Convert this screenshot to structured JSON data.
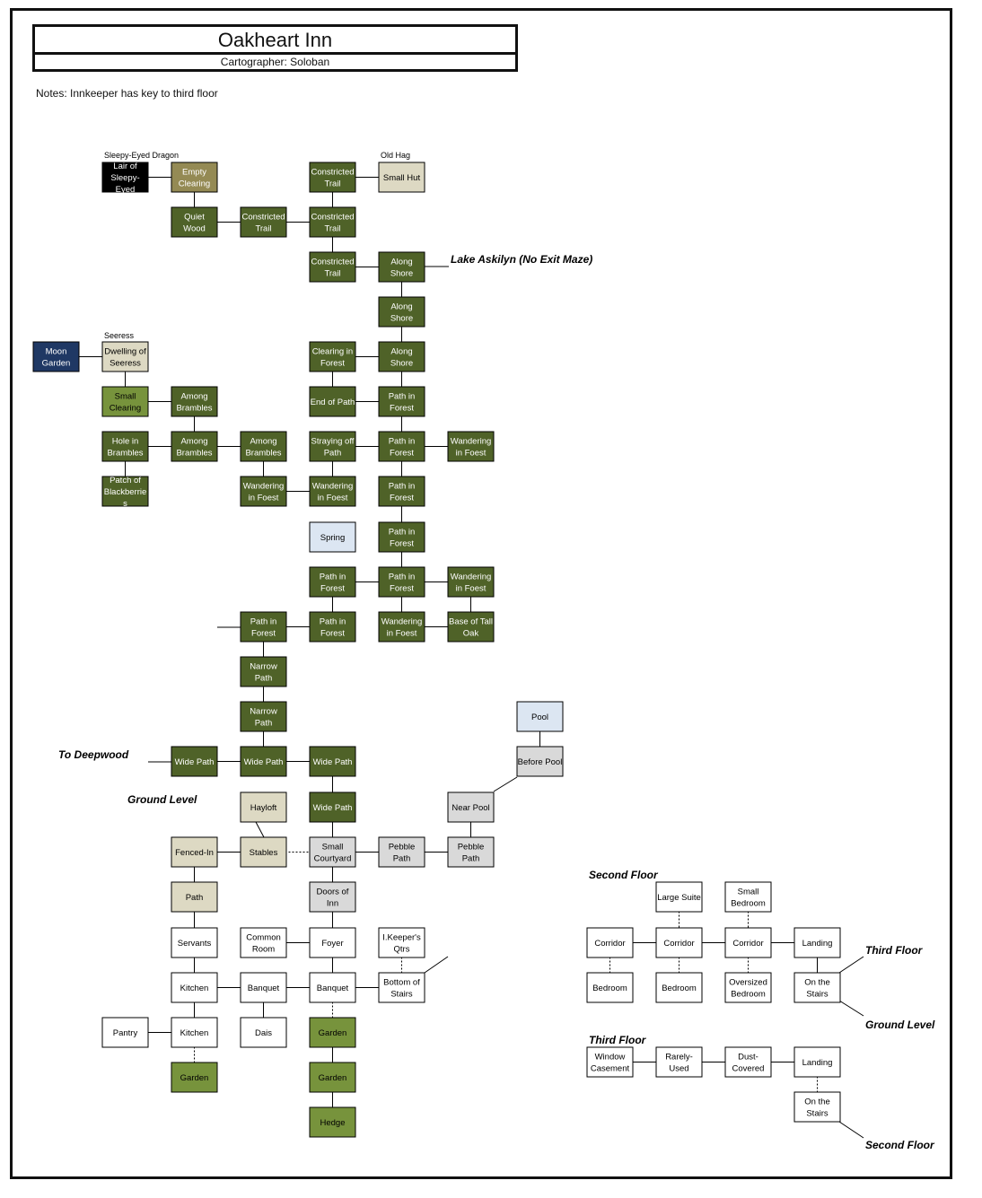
{
  "title": "Oakheart Inn",
  "cartographer": "Cartographer: Soloban",
  "notes": "Notes: Innkeeper has key to third floor",
  "colors": {
    "forest": "#4f6228",
    "light_green": "#77933c",
    "olive": "#948a54",
    "tan": "#ddd9c3",
    "grey": "#d9d9d9",
    "pale_blue": "#dce6f2",
    "navy": "#1f3864",
    "black": "#000000",
    "white": "#ffffff"
  },
  "rooms": [
    {
      "id": "lair",
      "line1": "Lair of",
      "line2": "Sleepy-",
      "line3": "Eyed",
      "fill": "black"
    },
    {
      "id": "empty-clearing",
      "line1": "Empty",
      "line2": "Clearing",
      "fill": "olive"
    },
    {
      "id": "constricted-trail-1",
      "line1": "Constricted",
      "line2": "Trail",
      "fill": "forest"
    },
    {
      "id": "small-hut",
      "line1": "Small Hut",
      "fill": "tan"
    },
    {
      "id": "quiet-wood",
      "line1": "Quiet",
      "line2": "Wood",
      "fill": "forest"
    },
    {
      "id": "constricted-trail-2",
      "line1": "Constricted",
      "line2": "Trail",
      "fill": "forest"
    },
    {
      "id": "constricted-trail-3",
      "line1": "Constricted",
      "line2": "Trail",
      "fill": "forest"
    },
    {
      "id": "constricted-trail-4",
      "line1": "Constricted",
      "line2": "Trail",
      "fill": "forest"
    },
    {
      "id": "along-shore-1",
      "line1": "Along",
      "line2": "Shore",
      "fill": "forest"
    },
    {
      "id": "along-shore-2",
      "line1": "Along",
      "line2": "Shore",
      "fill": "forest"
    },
    {
      "id": "moon-garden",
      "line1": "Moon",
      "line2": "Garden",
      "fill": "navy"
    },
    {
      "id": "dwelling-of-seeress",
      "line1": "Dwelling of",
      "line2": "Seeress",
      "fill": "tan"
    },
    {
      "id": "clearing-in-forest",
      "line1": "Clearing in",
      "line2": "Forest",
      "fill": "forest"
    },
    {
      "id": "along-shore-3",
      "line1": "Along",
      "line2": "Shore",
      "fill": "forest"
    },
    {
      "id": "small-clearing",
      "line1": "Small",
      "line2": "Clearing",
      "fill": "light_green"
    },
    {
      "id": "among-brambles-1",
      "line1": "Among",
      "line2": "Brambles",
      "fill": "forest"
    },
    {
      "id": "end-of-path",
      "line1": "End of Path",
      "fill": "forest"
    },
    {
      "id": "path-in-forest-1",
      "line1": "Path in",
      "line2": "Forest",
      "fill": "forest"
    },
    {
      "id": "hole-in-brambles",
      "line1": "Hole in",
      "line2": "Brambles",
      "fill": "forest"
    },
    {
      "id": "among-brambles-2",
      "line1": "Among",
      "line2": "Brambles",
      "fill": "forest"
    },
    {
      "id": "among-brambles-3",
      "line1": "Among",
      "line2": "Brambles",
      "fill": "forest"
    },
    {
      "id": "straying-off-path",
      "line1": "Straying off",
      "line2": "Path",
      "fill": "forest"
    },
    {
      "id": "path-in-forest-2",
      "line1": "Path in",
      "line2": "Forest",
      "fill": "forest"
    },
    {
      "id": "wandering-1",
      "line1": "Wandering",
      "line2": "in Foest",
      "fill": "forest"
    },
    {
      "id": "patch-of-blackberries",
      "line1": "Patch of",
      "line2": "Blackberrie",
      "line3": "s",
      "fill": "forest"
    },
    {
      "id": "wandering-2",
      "line1": "Wandering",
      "line2": "in Foest",
      "fill": "forest"
    },
    {
      "id": "wandering-3",
      "line1": "Wandering",
      "line2": "in Foest",
      "fill": "forest"
    },
    {
      "id": "path-in-forest-3",
      "line1": "Path in",
      "line2": "Forest",
      "fill": "forest"
    },
    {
      "id": "spring",
      "line1": "Spring",
      "fill": "pale_blue"
    },
    {
      "id": "path-in-forest-4",
      "line1": "Path in",
      "line2": "Forest",
      "fill": "forest"
    },
    {
      "id": "path-in-forest-5",
      "line1": "Path in",
      "line2": "Forest",
      "fill": "forest"
    },
    {
      "id": "path-in-forest-6",
      "line1": "Path in",
      "line2": "Forest",
      "fill": "forest"
    },
    {
      "id": "wandering-4",
      "line1": "Wandering",
      "line2": "in Foest",
      "fill": "forest"
    },
    {
      "id": "path-in-forest-7",
      "line1": "Path in",
      "line2": "Forest",
      "fill": "forest"
    },
    {
      "id": "path-in-forest-8",
      "line1": "Path in",
      "line2": "Forest",
      "fill": "forest"
    },
    {
      "id": "wandering-5",
      "line1": "Wandering",
      "line2": "in Foest",
      "fill": "forest"
    },
    {
      "id": "base-of-tall-oak",
      "line1": "Base of Tall",
      "line2": "Oak",
      "fill": "forest"
    },
    {
      "id": "narrow-path-1",
      "line1": "Narrow",
      "line2": "Path",
      "fill": "forest"
    },
    {
      "id": "narrow-path-2",
      "line1": "Narrow",
      "line2": "Path",
      "fill": "forest"
    },
    {
      "id": "pool",
      "line1": "Pool",
      "fill": "pale_blue"
    },
    {
      "id": "wide-path-1",
      "line1": "Wide Path",
      "fill": "forest"
    },
    {
      "id": "wide-path-2",
      "line1": "Wide Path",
      "fill": "forest"
    },
    {
      "id": "wide-path-3",
      "line1": "Wide Path",
      "fill": "forest"
    },
    {
      "id": "before-pool",
      "line1": "Before Pool",
      "fill": "grey"
    },
    {
      "id": "hayloft",
      "line1": "Hayloft",
      "fill": "tan"
    },
    {
      "id": "wide-path-4",
      "line1": "Wide Path",
      "fill": "forest"
    },
    {
      "id": "near-pool",
      "line1": "Near Pool",
      "fill": "grey"
    },
    {
      "id": "fenced-in",
      "line1": "Fenced-In",
      "fill": "tan"
    },
    {
      "id": "stables",
      "line1": "Stables",
      "fill": "tan"
    },
    {
      "id": "small-courtyard",
      "line1": "Small",
      "line2": "Courtyard",
      "fill": "grey"
    },
    {
      "id": "pebble-path-1",
      "line1": "Pebble",
      "line2": "Path",
      "fill": "grey"
    },
    {
      "id": "pebble-path-2",
      "line1": "Pebble",
      "line2": "Path",
      "fill": "grey"
    },
    {
      "id": "path",
      "line1": "Path",
      "fill": "tan"
    },
    {
      "id": "doors-of-inn",
      "line1": "Doors of",
      "line2": "Inn",
      "fill": "grey"
    },
    {
      "id": "servants",
      "line1": "Servants",
      "fill": "white"
    },
    {
      "id": "common-room",
      "line1": "Common",
      "line2": "Room",
      "fill": "white"
    },
    {
      "id": "foyer",
      "line1": "Foyer",
      "fill": "white"
    },
    {
      "id": "ikeepers-qtrs",
      "line1": "I.Keeper's",
      "line2": "Qtrs",
      "fill": "white"
    },
    {
      "id": "kitchen-1",
      "line1": "Kitchen",
      "fill": "white"
    },
    {
      "id": "banquet-1",
      "line1": "Banquet",
      "fill": "white"
    },
    {
      "id": "banquet-2",
      "line1": "Banquet",
      "fill": "white"
    },
    {
      "id": "bottom-of-stairs",
      "line1": "Bottom of",
      "line2": "Stairs",
      "fill": "white"
    },
    {
      "id": "pantry",
      "line1": "Pantry",
      "fill": "white"
    },
    {
      "id": "kitchen-2",
      "line1": "Kitchen",
      "fill": "white"
    },
    {
      "id": "dais",
      "line1": "Dais",
      "fill": "white"
    },
    {
      "id": "garden-1",
      "line1": "Garden",
      "fill": "light_green"
    },
    {
      "id": "garden-2",
      "line1": "Garden",
      "fill": "light_green"
    },
    {
      "id": "garden-3",
      "line1": "Garden",
      "fill": "light_green"
    },
    {
      "id": "hedge",
      "line1": "Hedge",
      "fill": "light_green"
    },
    {
      "id": "large-suite",
      "line1": "Large Suite",
      "fill": "white"
    },
    {
      "id": "small-bedroom",
      "line1": "Small",
      "line2": "Bedroom",
      "fill": "white"
    },
    {
      "id": "corridor-1",
      "line1": "Corridor",
      "fill": "white"
    },
    {
      "id": "corridor-2",
      "line1": "Corridor",
      "fill": "white"
    },
    {
      "id": "corridor-3",
      "line1": "Corridor",
      "fill": "white"
    },
    {
      "id": "landing-1",
      "line1": "Landing",
      "fill": "white"
    },
    {
      "id": "bedroom-1",
      "line1": "Bedroom",
      "fill": "white"
    },
    {
      "id": "bedroom-2",
      "line1": "Bedroom",
      "fill": "white"
    },
    {
      "id": "oversized-bedroom",
      "line1": "Oversized",
      "line2": "Bedroom",
      "fill": "white"
    },
    {
      "id": "on-the-stairs-1",
      "line1": "On the",
      "line2": "Stairs",
      "fill": "white"
    },
    {
      "id": "window-casement",
      "line1": "Window",
      "line2": "Casement",
      "fill": "white"
    },
    {
      "id": "rarely-used",
      "line1": "Rarely-",
      "line2": "Used",
      "fill": "white"
    },
    {
      "id": "dust-covered",
      "line1": "Dust-",
      "line2": "Covered",
      "fill": "white"
    },
    {
      "id": "landing-2",
      "line1": "Landing",
      "fill": "white"
    },
    {
      "id": "on-the-stairs-2",
      "line1": "On the",
      "line2": "Stairs",
      "fill": "white"
    }
  ],
  "npcs": [
    {
      "id": "sleepy-eyed-dragon",
      "text": "Sleepy-Eyed Dragon"
    },
    {
      "id": "old-hag",
      "text": "Old Hag"
    },
    {
      "id": "seeress",
      "text": "Seeress"
    }
  ],
  "annotations": [
    {
      "id": "lake-askilyn",
      "text": "Lake Askilyn (No Exit Maze)"
    },
    {
      "id": "to-deepwood",
      "text": "To Deepwood"
    },
    {
      "id": "ground-level-1",
      "text": "Ground Level"
    },
    {
      "id": "second-floor-1",
      "text": "Second Floor"
    },
    {
      "id": "third-floor-1",
      "text": "Third Floor"
    },
    {
      "id": "ground-level-2",
      "text": "Ground Level"
    },
    {
      "id": "third-floor-2",
      "text": "Third Floor"
    },
    {
      "id": "second-floor-2",
      "text": "Second Floor"
    }
  ],
  "connections": [
    [
      "lair",
      "empty-clearing",
      "solid"
    ],
    [
      "empty-clearing",
      "quiet-wood",
      "solid"
    ],
    [
      "quiet-wood",
      "constricted-trail-2",
      "solid"
    ],
    [
      "constricted-trail-2",
      "constricted-trail-3",
      "solid"
    ],
    [
      "constricted-trail-1",
      "small-hut",
      "solid"
    ],
    [
      "constricted-trail-1",
      "constricted-trail-3",
      "solid"
    ],
    [
      "constricted-trail-3",
      "constricted-trail-4",
      "solid"
    ],
    [
      "constricted-trail-4",
      "along-shore-1",
      "solid"
    ],
    [
      "along-shore-1",
      "along-shore-2",
      "solid"
    ],
    [
      "along-shore-2",
      "along-shore-3",
      "solid"
    ],
    [
      "clearing-in-forest",
      "along-shore-3",
      "solid"
    ],
    [
      "clearing-in-forest",
      "end-of-path",
      "solid"
    ],
    [
      "along-shore-3",
      "path-in-forest-1",
      "solid"
    ],
    [
      "end-of-path",
      "path-in-forest-1",
      "solid"
    ],
    [
      "moon-garden",
      "dwelling-of-seeress",
      "solid"
    ],
    [
      "dwelling-of-seeress",
      "small-clearing",
      "solid"
    ],
    [
      "small-clearing",
      "among-brambles-1",
      "solid"
    ],
    [
      "among-brambles-1",
      "among-brambles-2",
      "solid"
    ],
    [
      "hole-in-brambles",
      "among-brambles-2",
      "solid"
    ],
    [
      "hole-in-brambles",
      "patch-of-blackberries",
      "solid"
    ],
    [
      "among-brambles-2",
      "among-brambles-3",
      "solid"
    ],
    [
      "among-brambles-3",
      "wandering-2",
      "solid"
    ],
    [
      "wandering-2",
      "wandering-3",
      "solid"
    ],
    [
      "straying-off-path",
      "wandering-3",
      "solid"
    ],
    [
      "straying-off-path",
      "path-in-forest-2",
      "solid"
    ],
    [
      "path-in-forest-1",
      "path-in-forest-2",
      "solid"
    ],
    [
      "path-in-forest-2",
      "wandering-1",
      "solid"
    ],
    [
      "path-in-forest-2",
      "path-in-forest-3",
      "solid"
    ],
    [
      "path-in-forest-3",
      "path-in-forest-4",
      "solid"
    ],
    [
      "path-in-forest-4",
      "path-in-forest-6",
      "solid"
    ],
    [
      "path-in-forest-5",
      "path-in-forest-6",
      "solid"
    ],
    [
      "path-in-forest-6",
      "wandering-4",
      "solid"
    ],
    [
      "path-in-forest-6",
      "wandering-5",
      "solid"
    ],
    [
      "wandering-4",
      "base-of-tall-oak",
      "solid"
    ],
    [
      "wandering-5",
      "base-of-tall-oak",
      "solid"
    ],
    [
      "path-in-forest-5",
      "path-in-forest-8",
      "solid"
    ],
    [
      "path-in-forest-7",
      "path-in-forest-8",
      "solid"
    ],
    [
      "path-in-forest-7",
      "narrow-path-1",
      "solid"
    ],
    [
      "narrow-path-1",
      "narrow-path-2",
      "solid"
    ],
    [
      "narrow-path-2",
      "wide-path-2",
      "solid"
    ],
    [
      "wide-path-1",
      "wide-path-2",
      "solid"
    ],
    [
      "wide-path-2",
      "wide-path-3",
      "solid"
    ],
    [
      "wide-path-3",
      "wide-path-4",
      "solid"
    ],
    [
      "wide-path-4",
      "small-courtyard",
      "solid"
    ],
    [
      "pool",
      "before-pool",
      "solid"
    ],
    [
      "near-pool",
      "pebble-path-2",
      "solid"
    ],
    [
      "fenced-in",
      "stables",
      "solid"
    ],
    [
      "stables",
      "small-courtyard",
      "dashed"
    ],
    [
      "small-courtyard",
      "pebble-path-1",
      "solid"
    ],
    [
      "pebble-path-1",
      "pebble-path-2",
      "solid"
    ],
    [
      "small-courtyard",
      "doors-of-inn",
      "solid"
    ],
    [
      "fenced-in",
      "path",
      "solid"
    ],
    [
      "path",
      "servants",
      "solid"
    ],
    [
      "doors-of-inn",
      "foyer",
      "solid"
    ],
    [
      "common-room",
      "foyer",
      "solid"
    ],
    [
      "servants",
      "kitchen-1",
      "solid"
    ],
    [
      "foyer",
      "banquet-2",
      "solid"
    ],
    [
      "ikeepers-qtrs",
      "bottom-of-stairs",
      "dashed"
    ],
    [
      "kitchen-1",
      "banquet-1",
      "solid"
    ],
    [
      "banquet-1",
      "banquet-2",
      "solid"
    ],
    [
      "banquet-2",
      "bottom-of-stairs",
      "solid"
    ],
    [
      "banquet-1",
      "dais",
      "solid"
    ],
    [
      "kitchen-1",
      "kitchen-2",
      "solid"
    ],
    [
      "pantry",
      "kitchen-2",
      "solid"
    ],
    [
      "kitchen-2",
      "garden-1",
      "dashed"
    ],
    [
      "banquet-2",
      "garden-2",
      "dashed"
    ],
    [
      "garden-2",
      "garden-3",
      "solid"
    ],
    [
      "garden-3",
      "hedge",
      "solid"
    ],
    [
      "corridor-1",
      "corridor-2",
      "solid"
    ],
    [
      "corridor-2",
      "corridor-3",
      "solid"
    ],
    [
      "corridor-3",
      "landing-1",
      "solid"
    ],
    [
      "landing-1",
      "on-the-stairs-1",
      "solid"
    ],
    [
      "corridor-1",
      "bedroom-1",
      "dashed"
    ],
    [
      "corridor-2",
      "bedroom-2",
      "dashed"
    ],
    [
      "large-suite",
      "corridor-2",
      "dashed"
    ],
    [
      "small-bedroom",
      "corridor-3",
      "dashed"
    ],
    [
      "corridor-3",
      "oversized-bedroom",
      "dashed"
    ],
    [
      "window-casement",
      "rarely-used",
      "solid"
    ],
    [
      "rarely-used",
      "dust-covered",
      "solid"
    ],
    [
      "dust-covered",
      "landing-2",
      "solid"
    ],
    [
      "landing-2",
      "on-the-stairs-2",
      "dashed"
    ]
  ]
}
